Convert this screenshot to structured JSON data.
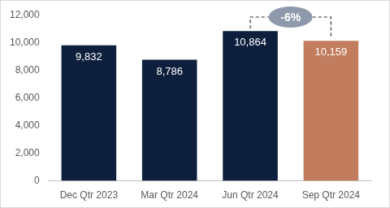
{
  "chart_data": {
    "type": "bar",
    "categories": [
      "Dec Qtr 2023",
      "Mar Qtr 2024",
      "Jun Qtr 2024",
      "Sep Qtr 2024"
    ],
    "values": [
      9832,
      8786,
      10864,
      10159
    ],
    "value_labels": [
      "9,832",
      "8,786",
      "10,864",
      "10,159"
    ],
    "colors": [
      "#0d1f3c",
      "#0d1f3c",
      "#0d1f3c",
      "#c27c5e"
    ],
    "ylim": [
      0,
      12000
    ],
    "yticks": [
      0,
      {
        "value": 2000,
        "label": "2,000"
      },
      {
        "value": 4000,
        "label": "4,000"
      },
      {
        "value": 6000,
        "label": "6,000"
      },
      {
        "value": 8000,
        "label": "8,000"
      },
      {
        "value": 10000,
        "label": "10,000"
      },
      {
        "value": 12000,
        "label": "12,000"
      }
    ],
    "grid": false,
    "data_labels": true,
    "annotations": [
      {
        "text": "-6%",
        "from": "Jun Qtr 2024",
        "to": "Sep Qtr 2024"
      }
    ]
  }
}
